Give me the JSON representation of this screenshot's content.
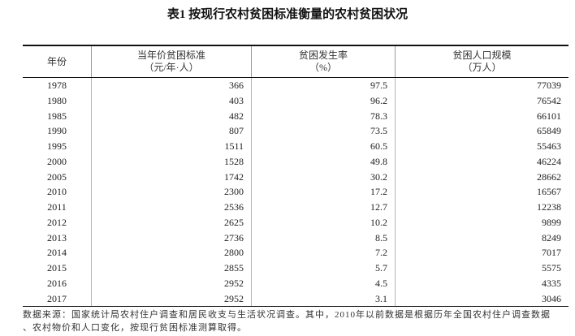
{
  "chart_data": {
    "type": "table",
    "title": "表1 按现行农村贫困标准衡量的农村贫困状况",
    "columns": [
      {
        "label": "年份"
      },
      {
        "label": "当年价贫困标准",
        "unit": "（元/年·人）"
      },
      {
        "label": "贫困发生率",
        "unit": "（%）"
      },
      {
        "label": "贫困人口规模",
        "unit": "（万人）"
      }
    ],
    "rows": [
      [
        1978,
        366,
        97.5,
        77039
      ],
      [
        1980,
        403,
        96.2,
        76542
      ],
      [
        1985,
        482,
        78.3,
        66101
      ],
      [
        1990,
        807,
        73.5,
        65849
      ],
      [
        1995,
        1511,
        60.5,
        55463
      ],
      [
        2000,
        1528,
        49.8,
        46224
      ],
      [
        2005,
        1742,
        30.2,
        28662
      ],
      [
        2010,
        2300,
        17.2,
        16567
      ],
      [
        2011,
        2536,
        12.7,
        12238
      ],
      [
        2012,
        2625,
        10.2,
        9899
      ],
      [
        2013,
        2736,
        8.5,
        8249
      ],
      [
        2014,
        2800,
        7.2,
        7017
      ],
      [
        2015,
        2855,
        5.7,
        5575
      ],
      [
        2016,
        2952,
        4.5,
        4335
      ],
      [
        2017,
        2952,
        3.1,
        3046
      ]
    ]
  },
  "footnote": [
    "数据来源：国家统计局农村住户调查和居民收支与生活状况调查。其中，2010年以前数据是根据历年全国农村住户调查数据",
    "、农村物价和人口变化，按现行贫困标准测算取得。"
  ]
}
